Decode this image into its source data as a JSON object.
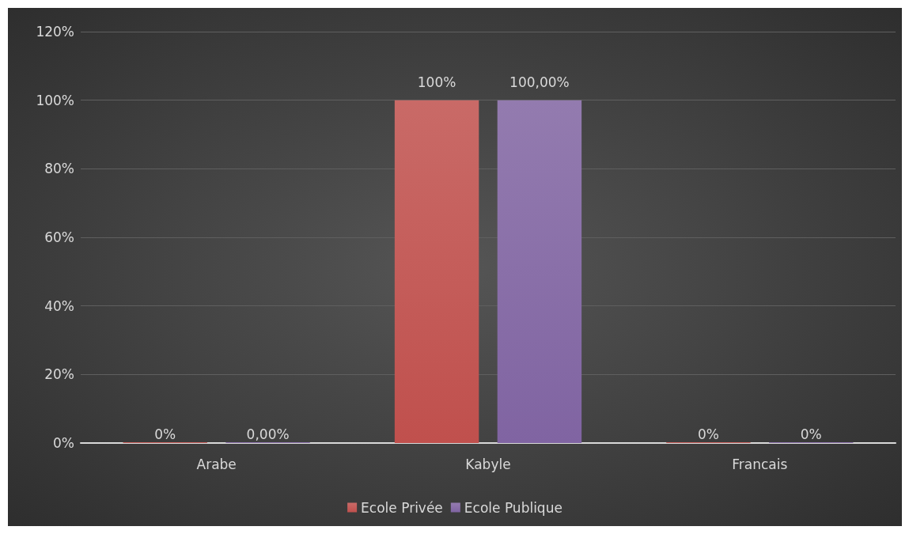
{
  "chart_data": {
    "type": "bar",
    "categories": [
      "Arabe",
      "Kabyle",
      "Francais"
    ],
    "series": [
      {
        "name": "Ecole Privée",
        "color": "#c0504d",
        "values": [
          0,
          100,
          0
        ],
        "value_labels": [
          "0%",
          "100%",
          "0%"
        ]
      },
      {
        "name": "Ecole Publique",
        "color": "#8064a2",
        "values": [
          0,
          100,
          0
        ],
        "value_labels": [
          "0,00%",
          "100,00%",
          "0%"
        ]
      }
    ],
    "ylim": [
      0,
      120
    ],
    "yticks": [
      {
        "value": 0,
        "label": "0%"
      },
      {
        "value": 20,
        "label": "20%"
      },
      {
        "value": 40,
        "label": "40%"
      },
      {
        "value": 60,
        "label": "60%"
      },
      {
        "value": 80,
        "label": "80%"
      },
      {
        "value": 100,
        "label": "100%"
      },
      {
        "value": 120,
        "label": "120%"
      }
    ],
    "grid": "y",
    "legend": "bottom"
  }
}
